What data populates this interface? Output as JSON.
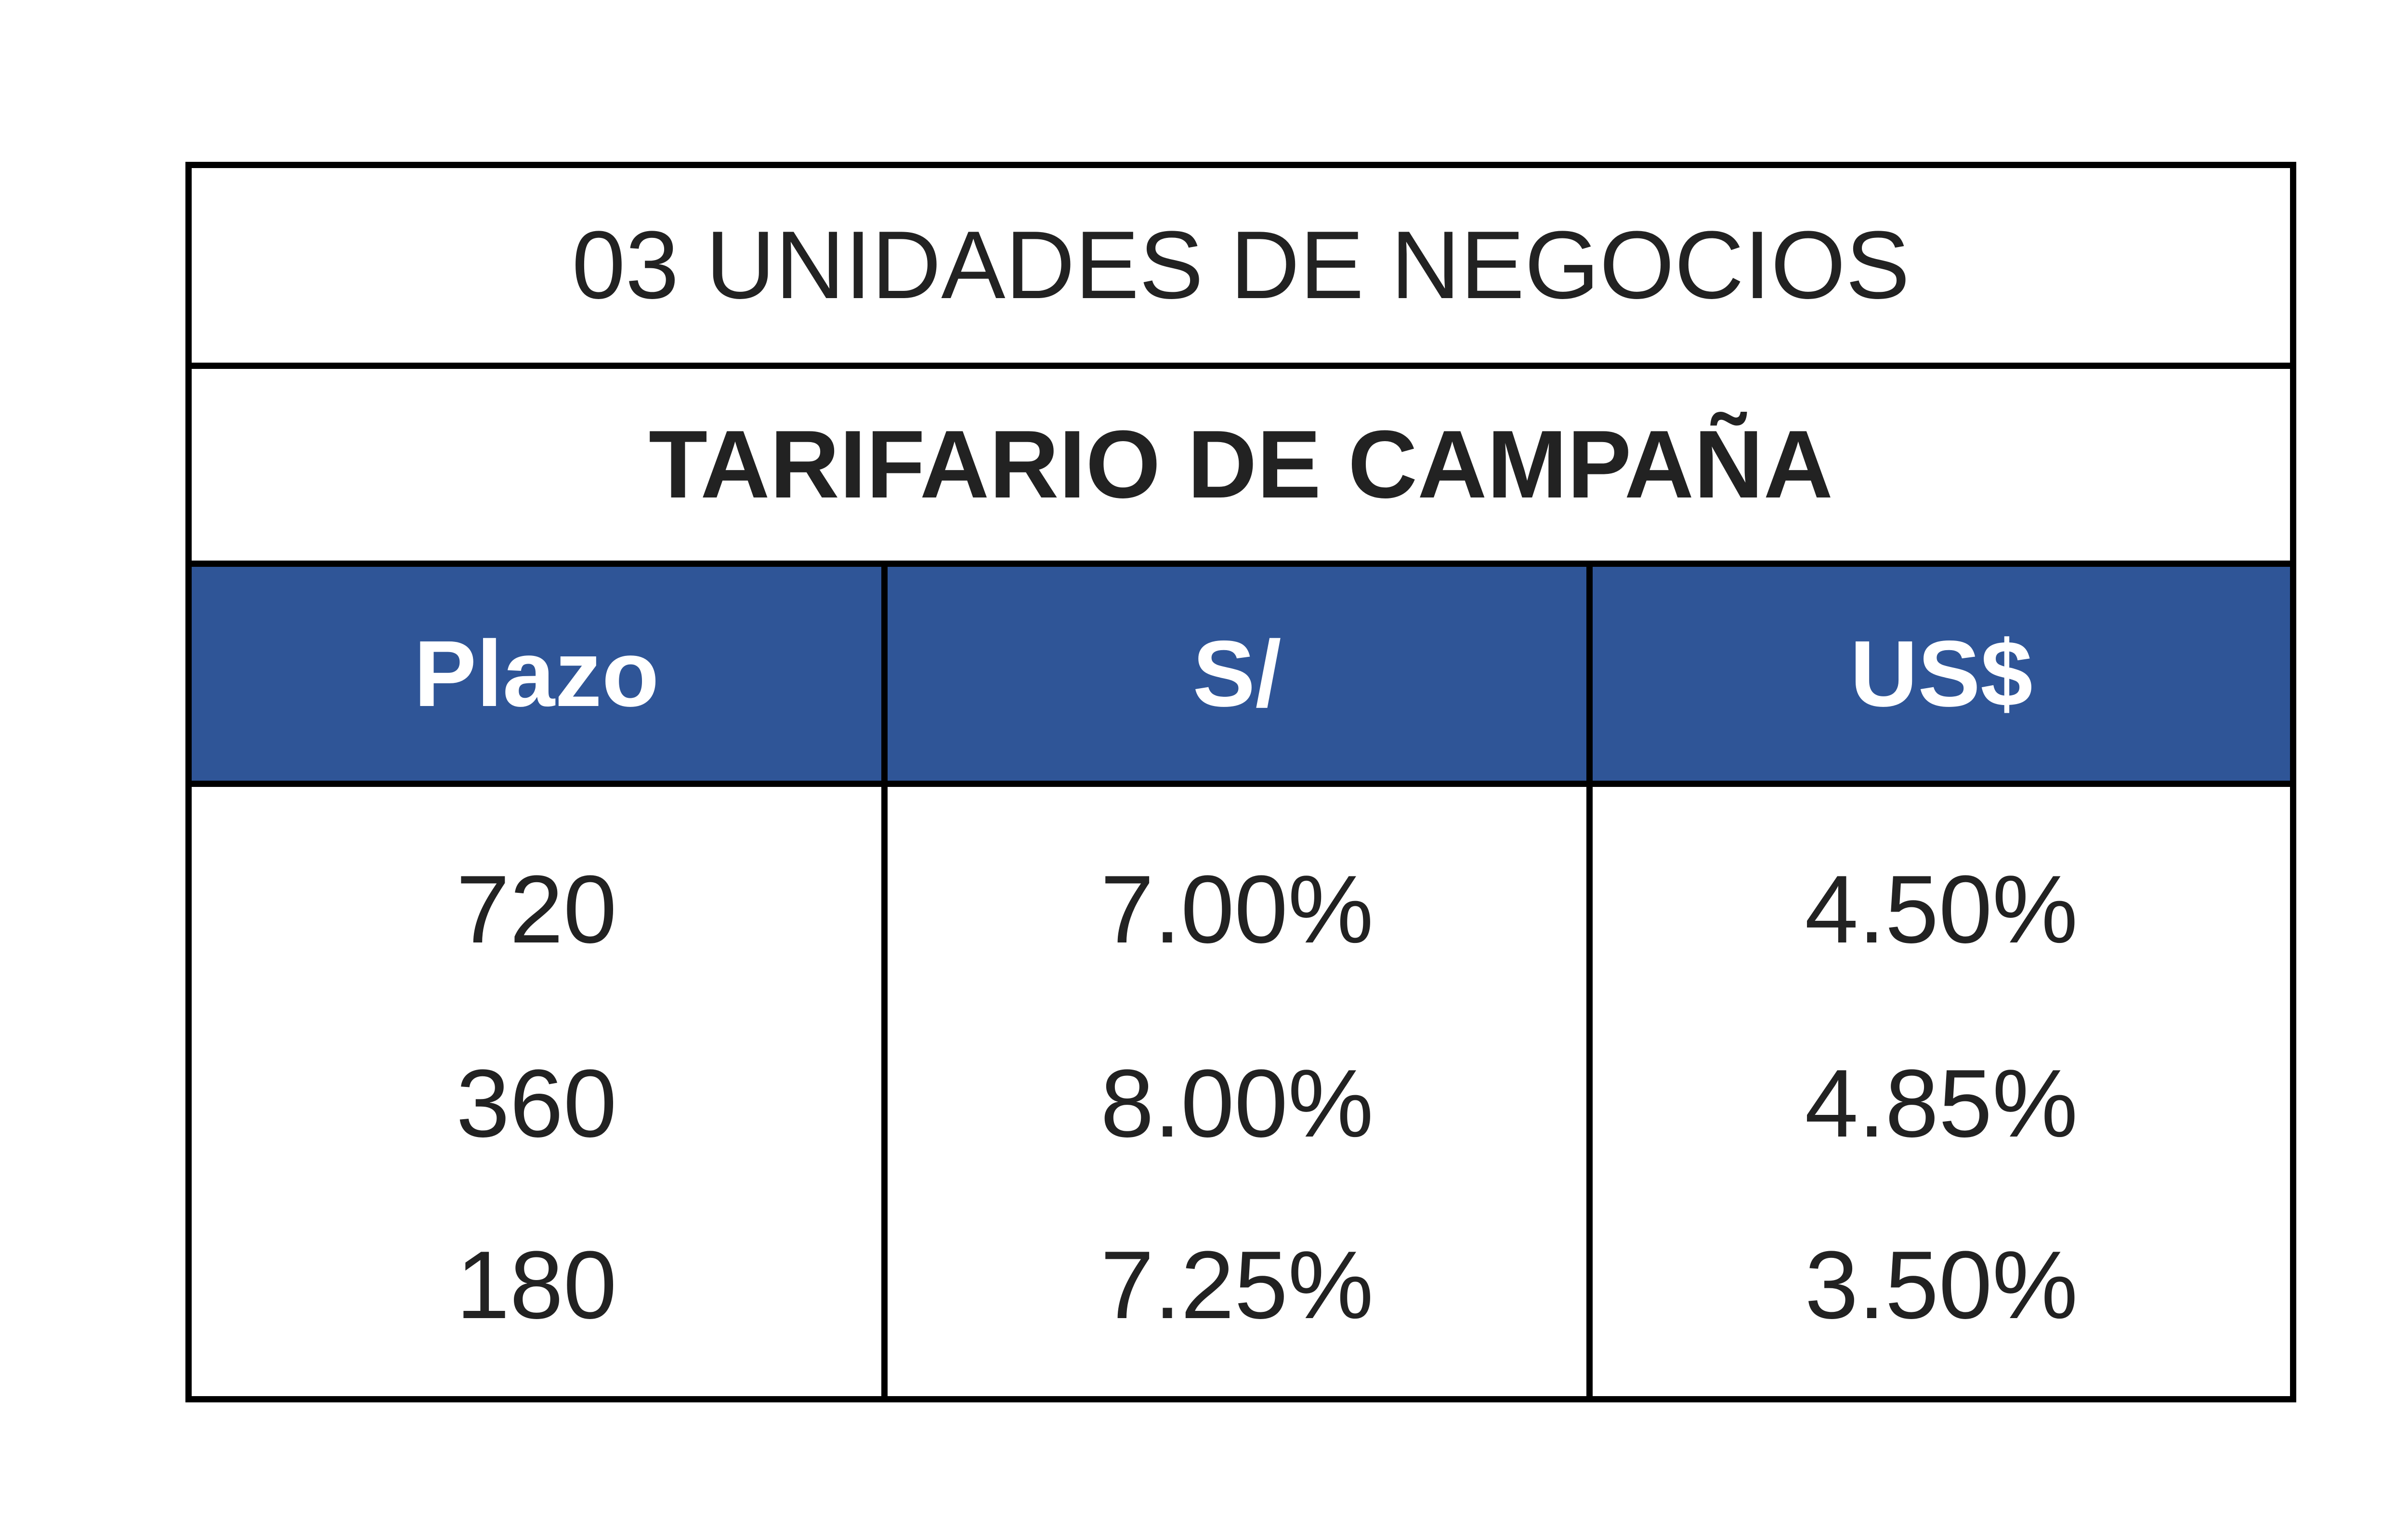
{
  "table": {
    "title": "03 UNIDADES DE NEGOCIOS",
    "subtitle": "TARIFARIO DE CAMPAÑA",
    "header": [
      "Plazo",
      "S/",
      "US$"
    ],
    "rows": [
      [
        "720",
        "7.00%",
        "4.50%"
      ],
      [
        "360",
        "8.00%",
        "4.85%"
      ],
      [
        "180",
        "7.25%",
        "3.50%"
      ]
    ]
  }
}
